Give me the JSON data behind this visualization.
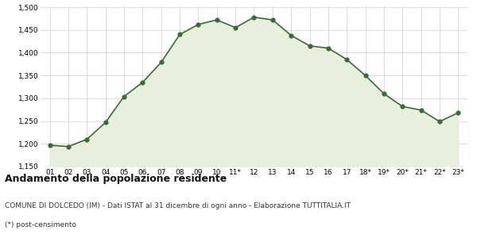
{
  "x_labels": [
    "01",
    "02",
    "03",
    "04",
    "05",
    "06",
    "07",
    "08",
    "09",
    "10",
    "11*",
    "12",
    "13",
    "14",
    "15",
    "16",
    "17",
    "18*",
    "19*",
    "20*",
    "21*",
    "22*",
    "23*"
  ],
  "values": [
    1197,
    1194,
    1210,
    1247,
    1304,
    1335,
    1379,
    1440,
    1462,
    1472,
    1455,
    1478,
    1472,
    1438,
    1415,
    1410,
    1385,
    1350,
    1310,
    1282,
    1274,
    1249,
    1268
  ],
  "line_color": "#3a6b35",
  "fill_color": "#e8efdd",
  "marker_color": "#3a6b35",
  "bg_color": "#ffffff",
  "grid_color": "#cccccc",
  "ylim_min": 1150,
  "ylim_max": 1500,
  "yticks": [
    1150,
    1200,
    1250,
    1300,
    1350,
    1400,
    1450,
    1500
  ],
  "title": "Andamento della popolazione residente",
  "subtitle": "COMUNE DI DOLCEDO (IM) - Dati ISTAT al 31 dicembre di ogni anno - Elaborazione TUTTITALIA.IT",
  "footnote": "(*) post-censimento",
  "title_fontsize": 9,
  "subtitle_fontsize": 6.5,
  "footnote_fontsize": 6.5
}
